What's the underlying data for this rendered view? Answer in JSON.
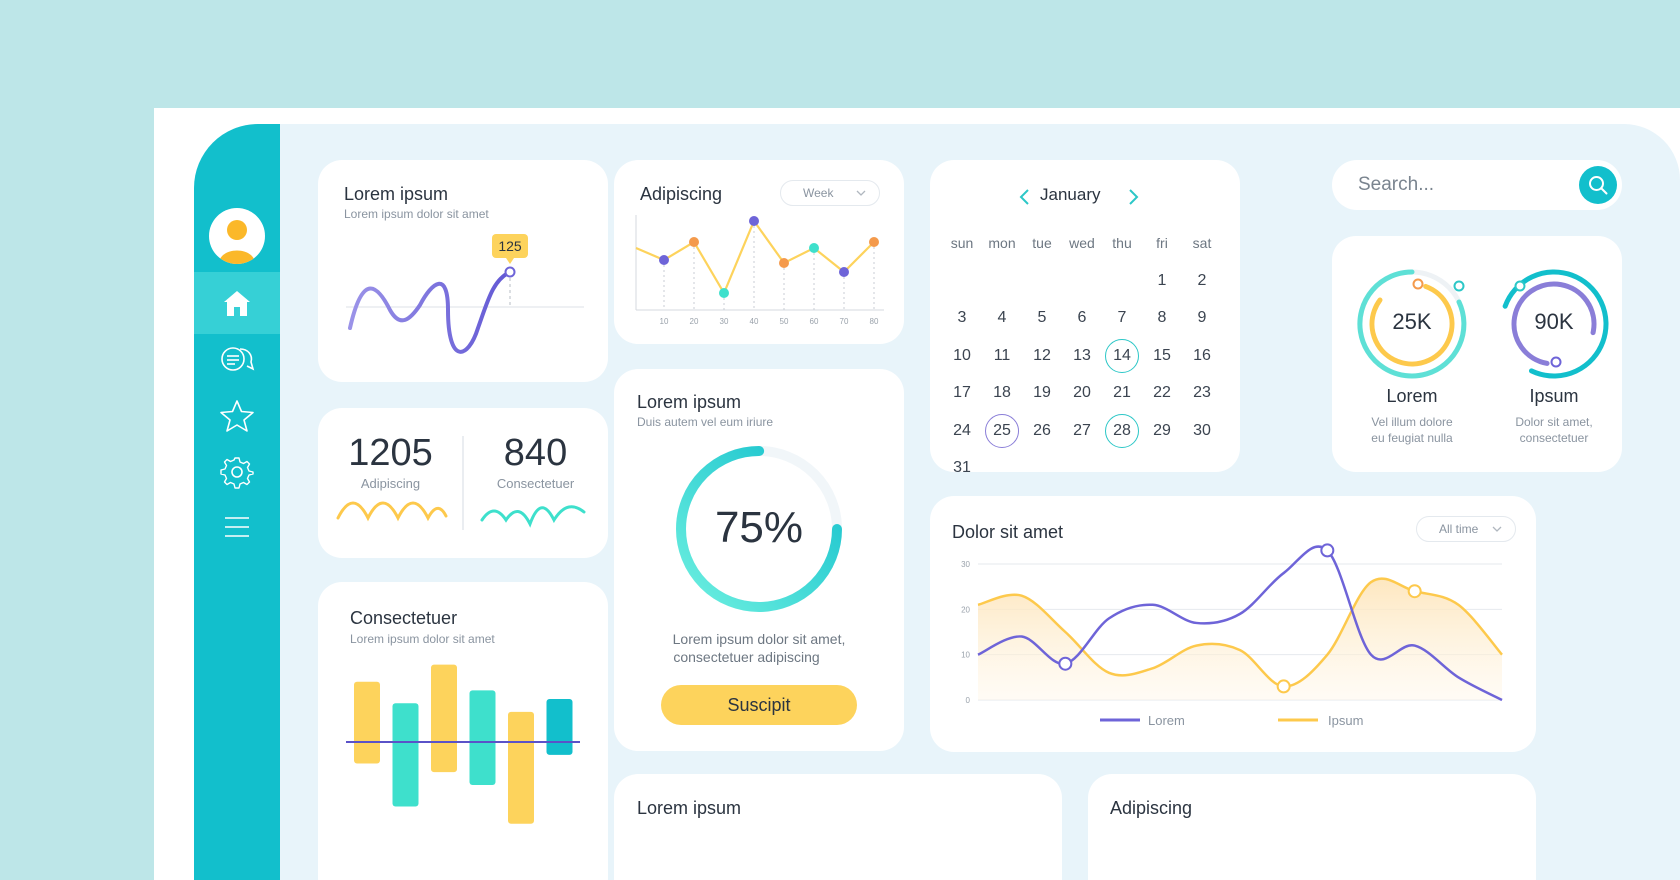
{
  "search": {
    "placeholder": "Search..."
  },
  "sidebar": {
    "items": [
      {
        "icon": "home-icon"
      },
      {
        "icon": "chat-icon"
      },
      {
        "icon": "star-icon"
      },
      {
        "icon": "gear-icon"
      },
      {
        "icon": "menu-icon"
      }
    ]
  },
  "card_wave": {
    "title": "Lorem ipsum",
    "subtitle": "Lorem ipsum dolor sit amet",
    "badge": "125"
  },
  "card_stats": {
    "left": {
      "value": "1205",
      "label": "Adipiscing"
    },
    "right": {
      "value": "840",
      "label": "Consectetuer"
    }
  },
  "card_bars": {
    "title": "Consectetuer",
    "subtitle": "Lorem ipsum dolor sit amet"
  },
  "card_line": {
    "title": "Adipiscing",
    "dropdown": "Week"
  },
  "card_progress": {
    "title": "Lorem ipsum",
    "subtitle": "Duis autem vel eum iriure",
    "percent": "75%",
    "progress": 0.75,
    "text1": "Lorem ipsum dolor sit amet,",
    "text2": "consectetuer adipiscing",
    "button": "Suscipit"
  },
  "calendar": {
    "month": "January",
    "weekdays": [
      "sun",
      "mon",
      "tue",
      "wed",
      "thu",
      "fri",
      "sat"
    ],
    "weeks": [
      [
        "",
        "",
        "",
        "",
        "",
        "1",
        "2"
      ],
      [
        "3",
        "4",
        "5",
        "6",
        "7",
        "8",
        "9"
      ],
      [
        "10",
        "11",
        "12",
        "13",
        "14",
        "15",
        "16"
      ],
      [
        "17",
        "18",
        "19",
        "20",
        "21",
        "22",
        "23"
      ],
      [
        "24",
        "25",
        "26",
        "27",
        "28",
        "29",
        "30"
      ],
      [
        "31",
        "",
        "",
        "",
        "",
        "",
        ""
      ]
    ],
    "highlighted_teal": [
      "14",
      "28"
    ],
    "highlighted_purple": [
      "25"
    ]
  },
  "card_donuts": {
    "left": {
      "value": "25K",
      "name": "Lorem",
      "desc1": "Vel illum dolore",
      "desc2": "eu feugiat nulla"
    },
    "right": {
      "value": "90K",
      "name": "Ipsum",
      "desc1": "Dolor sit amet,",
      "desc2": "consectetuer"
    }
  },
  "card_area": {
    "title": "Dolor sit amet",
    "dropdown": "All time"
  },
  "bottom_cards": {
    "left_title": "Lorem ipsum",
    "right_title": "Adipiscing"
  },
  "colors": {
    "teal": "#12bfcc",
    "yellow": "#fdc94c",
    "purple": "#6e64d8",
    "mint": "#3ee0cc"
  },
  "chart_data": [
    {
      "type": "line",
      "title": "Adipiscing",
      "x": [
        10,
        20,
        30,
        40,
        50,
        60,
        70,
        80
      ],
      "x_tick_labels": [
        "10",
        "20",
        "30",
        "40",
        "50",
        "60",
        "70",
        "80"
      ],
      "series": [
        {
          "values": [
            14,
            20,
            3,
            27,
            13,
            18,
            10,
            20
          ]
        }
      ]
    },
    {
      "type": "area",
      "title": "Dolor sit amet",
      "x": [
        0,
        1,
        2,
        3,
        4,
        5,
        6,
        7,
        8,
        9,
        10,
        11,
        12
      ],
      "y_tick_labels": [
        "0",
        "10",
        "20",
        "30"
      ],
      "ylim": [
        0,
        30
      ],
      "series": [
        {
          "name": "Lorem",
          "values": [
            10,
            14,
            8,
            18,
            21,
            17,
            19,
            28,
            33,
            10,
            12,
            5,
            0
          ]
        },
        {
          "name": "Ipsum",
          "values": [
            21,
            23,
            15,
            6,
            7,
            12,
            11,
            3,
            10,
            26,
            24,
            21,
            10
          ]
        }
      ]
    },
    {
      "type": "bar",
      "title": "Consectetuer",
      "categories": [
        "1",
        "2",
        "3",
        "4",
        "5",
        "6"
      ],
      "baseline": 0,
      "values_top": [
        14,
        9,
        18,
        12,
        7,
        10
      ],
      "values_bottom": [
        -5,
        -15,
        -7,
        -10,
        -19,
        -3
      ]
    }
  ]
}
